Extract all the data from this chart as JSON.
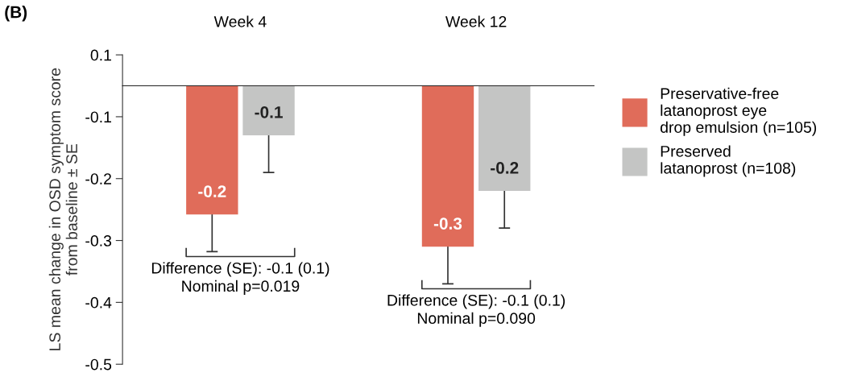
{
  "chart_data": {
    "type": "bar",
    "categories": [
      "Week 4",
      "Week 12"
    ],
    "ylabel": "LS mean change in OSD symptom score\nfrom baseline ± SE",
    "ylim": [
      -0.45,
      0.05
    ],
    "yticks": [
      {
        "value": 0.05,
        "label": "0.1"
      },
      {
        "value": -0.05,
        "label": "-0.1"
      },
      {
        "value": -0.15,
        "label": "-0.2"
      },
      {
        "value": -0.25,
        "label": "-0.3"
      },
      {
        "value": -0.35,
        "label": "-0.4"
      },
      {
        "value": -0.45,
        "label": "-0.5"
      }
    ],
    "series": [
      {
        "name": "Preservative-free\nlatanoprost eye\ndrop emulsion (n=105)",
        "color": "#e06c5a",
        "values": [
          -0.208,
          -0.26
        ],
        "errors": [
          0.06,
          0.06
        ],
        "value_labels": [
          "-0.2",
          "-0.3"
        ]
      },
      {
        "name": "Preserved\nlatanoprost (n=108)",
        "color": "#c4c5c4",
        "values": [
          -0.08,
          -0.17
        ],
        "errors": [
          0.06,
          0.06
        ],
        "value_labels": [
          "-0.1",
          "-0.2"
        ]
      }
    ],
    "annotations": [
      "(B)",
      "Difference (SE): -0.1 (0.1)\nNominal p=0.019",
      "Difference (SE): -0.1 (0.1)\nNominal p=0.090"
    ],
    "legend": "right",
    "grid": false
  }
}
